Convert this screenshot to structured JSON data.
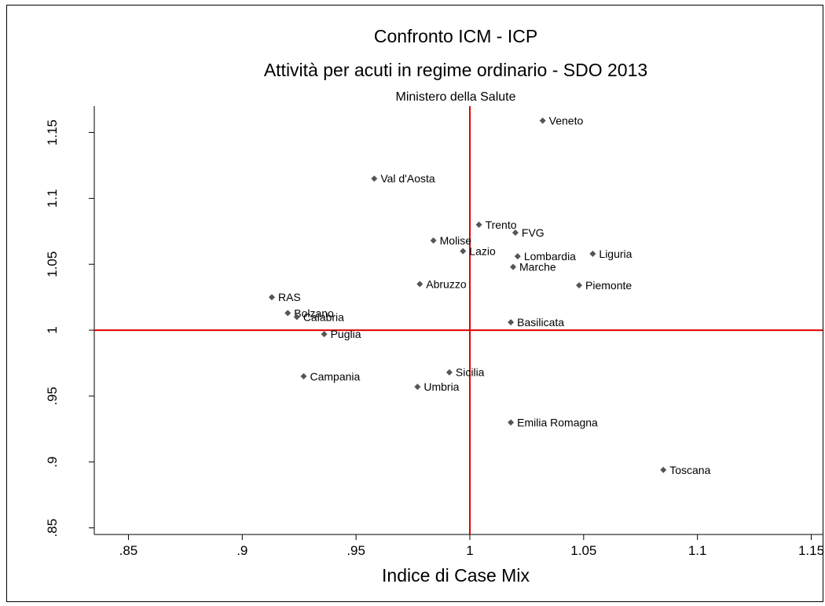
{
  "chart_data": {
    "type": "scatter",
    "title": "Confronto ICM - ICP",
    "subtitle": "Attività per acuti in regime ordinario - SDO 2013",
    "note": "Ministero della Salute",
    "xlabel": "Indice di Case Mix",
    "ylabel": "",
    "xlim": [
      0.835,
      1.155
    ],
    "ylim": [
      0.845,
      1.17
    ],
    "xticks": [
      ".85",
      ".9",
      ".95",
      "1",
      "1.05",
      "1.1",
      "1.15"
    ],
    "xtick_values": [
      0.85,
      0.9,
      0.95,
      1.0,
      1.05,
      1.1,
      1.15
    ],
    "yticks": [
      ".85",
      ".9",
      ".95",
      "1",
      "1.05",
      "1.1",
      "1.15"
    ],
    "ytick_values": [
      0.85,
      0.9,
      0.95,
      1.0,
      1.05,
      1.1,
      1.15
    ],
    "reference_lines": {
      "x": 1.0,
      "y": 1.0,
      "color": "#e00000"
    },
    "marker_color": "#555555",
    "grid": false,
    "points": [
      {
        "label": "Veneto",
        "x": 1.032,
        "y": 1.159
      },
      {
        "label": "Val d'Aosta",
        "x": 0.958,
        "y": 1.115
      },
      {
        "label": "Trento",
        "x": 1.004,
        "y": 1.08
      },
      {
        "label": "FVG",
        "x": 1.02,
        "y": 1.074
      },
      {
        "label": "Molise",
        "x": 0.984,
        "y": 1.068
      },
      {
        "label": "Lazio",
        "x": 0.997,
        "y": 1.06
      },
      {
        "label": "Liguria",
        "x": 1.054,
        "y": 1.058
      },
      {
        "label": "Lombardia",
        "x": 1.021,
        "y": 1.056
      },
      {
        "label": "Marche",
        "x": 1.019,
        "y": 1.048
      },
      {
        "label": "Abruzzo",
        "x": 0.978,
        "y": 1.035
      },
      {
        "label": "Piemonte",
        "x": 1.048,
        "y": 1.034
      },
      {
        "label": "RAS",
        "x": 0.913,
        "y": 1.025
      },
      {
        "label": "Bolzano",
        "x": 0.92,
        "y": 1.013
      },
      {
        "label": "Calabria",
        "x": 0.924,
        "y": 1.01
      },
      {
        "label": "Basilicata",
        "x": 1.018,
        "y": 1.006
      },
      {
        "label": "Puglia",
        "x": 0.936,
        "y": 0.997
      },
      {
        "label": "Sicilia",
        "x": 0.991,
        "y": 0.968
      },
      {
        "label": "Campania",
        "x": 0.927,
        "y": 0.965
      },
      {
        "label": "Umbria",
        "x": 0.977,
        "y": 0.957
      },
      {
        "label": "Emilia Romagna",
        "x": 1.018,
        "y": 0.93
      },
      {
        "label": "Toscana",
        "x": 1.085,
        "y": 0.894
      }
    ]
  }
}
